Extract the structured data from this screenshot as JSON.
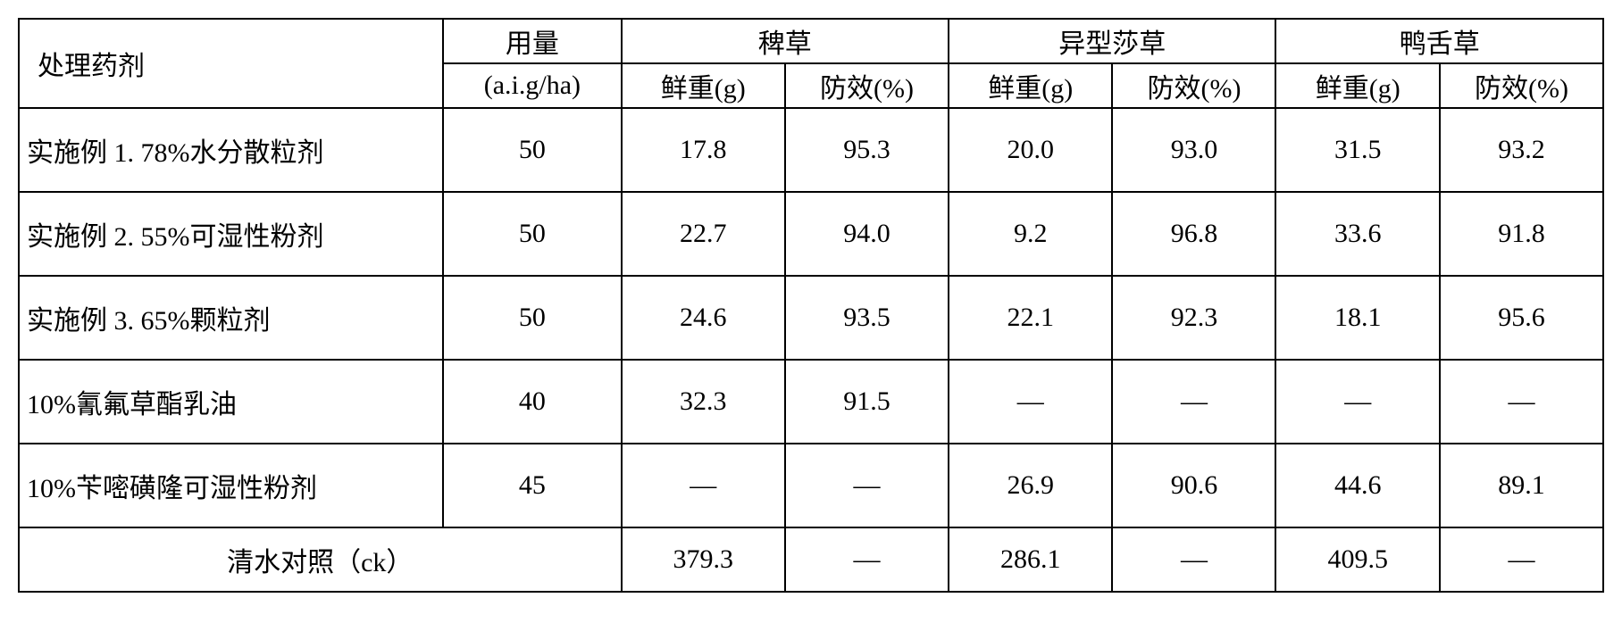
{
  "table": {
    "type": "table",
    "background_color": "#ffffff",
    "border_color": "#000000",
    "border_width": 2,
    "font_family": "SimSun",
    "font_size": 30,
    "text_color": "#000000",
    "headers": {
      "treatment": "处理药剂",
      "dosage": "用量",
      "dosage_unit": "(a.i.g/ha)",
      "group1": "稗草",
      "group2": "异型莎草",
      "group3": "鸭舌草",
      "weight_label": "鲜重(g)",
      "efficacy_label": "防效(%)"
    },
    "rows": [
      {
        "treatment": "实施例 1. 78%水分散粒剂",
        "dosage": "50",
        "g1_weight": "17.8",
        "g1_efficacy": "95.3",
        "g2_weight": "20.0",
        "g2_efficacy": "93.0",
        "g3_weight": "31.5",
        "g3_efficacy": "93.2"
      },
      {
        "treatment": "实施例 2. 55%可湿性粉剂",
        "dosage": "50",
        "g1_weight": "22.7",
        "g1_efficacy": "94.0",
        "g2_weight": "9.2",
        "g2_efficacy": "96.8",
        "g3_weight": "33.6",
        "g3_efficacy": "91.8"
      },
      {
        "treatment": "实施例 3. 65%颗粒剂",
        "dosage": "50",
        "g1_weight": "24.6",
        "g1_efficacy": "93.5",
        "g2_weight": "22.1",
        "g2_efficacy": "92.3",
        "g3_weight": "18.1",
        "g3_efficacy": "95.6"
      },
      {
        "treatment": "10%氰氟草酯乳油",
        "dosage": "40",
        "g1_weight": "32.3",
        "g1_efficacy": "91.5",
        "g2_weight": "—",
        "g2_efficacy": "—",
        "g3_weight": "—",
        "g3_efficacy": "—"
      },
      {
        "treatment": "10%苄嘧磺隆可湿性粉剂",
        "dosage": "45",
        "g1_weight": "—",
        "g1_efficacy": "—",
        "g2_weight": "26.9",
        "g2_efficacy": "90.6",
        "g3_weight": "44.6",
        "g3_efficacy": "89.1"
      }
    ],
    "footer": {
      "label": "清水对照（ck）",
      "g1_weight": "379.3",
      "g1_efficacy": "—",
      "g2_weight": "286.1",
      "g2_efficacy": "—",
      "g3_weight": "409.5",
      "g3_efficacy": "—"
    },
    "column_widths": {
      "treatment": 466,
      "dosage": 200,
      "data": 185
    }
  }
}
